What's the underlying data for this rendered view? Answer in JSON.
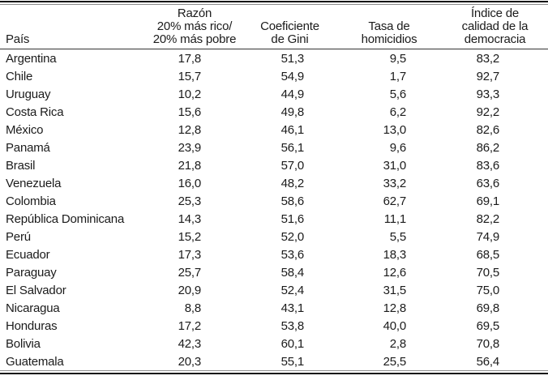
{
  "table": {
    "columns": [
      {
        "label": "País"
      },
      {
        "label": "Razón\n20% más rico/\n20% más pobre"
      },
      {
        "label": "Coeficiente\nde Gini"
      },
      {
        "label": "Tasa de\nhomicidios"
      },
      {
        "label": "Índice de\ncalidad de la\ndemocracia"
      }
    ],
    "rows": [
      {
        "country": "Argentina",
        "values": [
          "17,8",
          "51,3",
          "9,5",
          "83,2"
        ]
      },
      {
        "country": "Chile",
        "values": [
          "15,7",
          "54,9",
          "1,7",
          "92,7"
        ]
      },
      {
        "country": "Uruguay",
        "values": [
          "10,2",
          "44,9",
          "5,6",
          "93,3"
        ]
      },
      {
        "country": "Costa Rica",
        "values": [
          "15,6",
          "49,8",
          "6,2",
          "92,2"
        ]
      },
      {
        "country": "México",
        "values": [
          "12,8",
          "46,1",
          "13,0",
          "82,6"
        ]
      },
      {
        "country": "Panamá",
        "values": [
          "23,9",
          "56,1",
          "9,6",
          "86,2"
        ]
      },
      {
        "country": "Brasil",
        "values": [
          "21,8",
          "57,0",
          "31,0",
          "83,6"
        ]
      },
      {
        "country": "Venezuela",
        "values": [
          "16,0",
          "48,2",
          "33,2",
          "63,6"
        ]
      },
      {
        "country": "Colombia",
        "values": [
          "25,3",
          "58,6",
          "62,7",
          "69,1"
        ]
      },
      {
        "country": "República Dominicana",
        "values": [
          "14,3",
          "51,6",
          "11,1",
          "82,2"
        ]
      },
      {
        "country": "Perú",
        "values": [
          "15,2",
          "52,0",
          "5,5",
          "74,9"
        ]
      },
      {
        "country": "Ecuador",
        "values": [
          "17,3",
          "53,6",
          "18,3",
          "68,5"
        ]
      },
      {
        "country": "Paraguay",
        "values": [
          "25,7",
          "58,4",
          "12,6",
          "70,5"
        ]
      },
      {
        "country": "El Salvador",
        "values": [
          "20,9",
          "52,4",
          "31,5",
          "75,0"
        ]
      },
      {
        "country": "Nicaragua",
        "values": [
          "8,8",
          "43,1",
          "12,8",
          "69,8"
        ]
      },
      {
        "country": "Honduras",
        "values": [
          "17,2",
          "53,8",
          "40,0",
          "69,5"
        ]
      },
      {
        "country": "Bolivia",
        "values": [
          "42,3",
          "60,1",
          "2,8",
          "70,8"
        ]
      },
      {
        "country": "Guatemala",
        "values": [
          "20,3",
          "55,1",
          "25,5",
          "56,4"
        ]
      }
    ]
  }
}
